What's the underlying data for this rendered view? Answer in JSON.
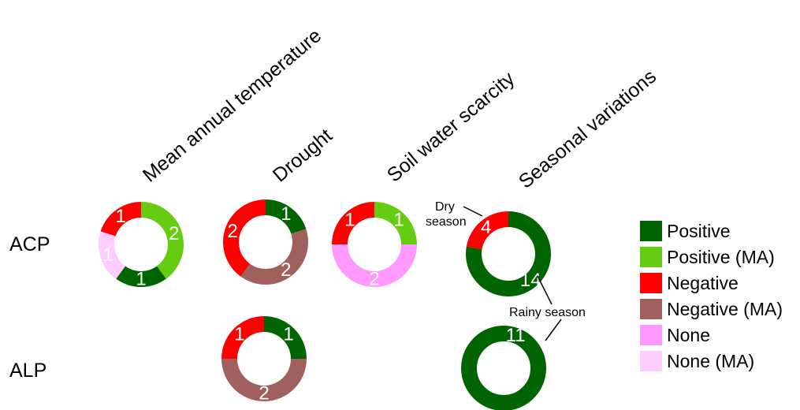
{
  "chart_data": {
    "type": "pie",
    "categories": [
      "Positive",
      "Positive (MA)",
      "Negative",
      "Negative (MA)",
      "None",
      "None (MA)"
    ],
    "colors": {
      "Positive": "#006400",
      "Positive (MA)": "#66cc11",
      "Negative": "#ff0000",
      "Negative (MA)": "#a0605e",
      "None": "#ff99ff",
      "None (MA)": "#ffccff"
    },
    "columns": [
      "Mean annual temperature",
      "Drought",
      "Soil water scarcity",
      "Seasonal variations"
    ],
    "rows": [
      "ACP",
      "ALP"
    ],
    "legend": [
      "Positive",
      "Positive (MA)",
      "Negative",
      "Negative (MA)",
      "None",
      "None (MA)"
    ],
    "legend_position": "right",
    "donuts": [
      {
        "row": "ACP",
        "column": "Mean annual temperature",
        "slices": [
          {
            "category": "Positive (MA)",
            "value": 2
          },
          {
            "category": "Positive",
            "value": 1
          },
          {
            "category": "None (MA)",
            "value": 1
          },
          {
            "category": "Negative",
            "value": 1
          }
        ]
      },
      {
        "row": "ACP",
        "column": "Drought",
        "slices": [
          {
            "category": "Positive",
            "value": 1
          },
          {
            "category": "Negative (MA)",
            "value": 2
          },
          {
            "category": "Negative",
            "value": 2
          }
        ]
      },
      {
        "row": "ACP",
        "column": "Soil water scarcity",
        "slices": [
          {
            "category": "Positive (MA)",
            "value": 1
          },
          {
            "category": "None",
            "value": 2
          },
          {
            "category": "Negative",
            "value": 1
          }
        ]
      },
      {
        "row": "ACP",
        "column": "Seasonal variations",
        "slices": [
          {
            "category": "Positive",
            "value": 14
          },
          {
            "category": "Negative",
            "value": 4
          }
        ]
      },
      {
        "row": "ALP",
        "column": "Drought",
        "slices": [
          {
            "category": "Positive",
            "value": 1
          },
          {
            "category": "Negative (MA)",
            "value": 2
          },
          {
            "category": "Negative",
            "value": 1
          }
        ]
      },
      {
        "row": "ALP",
        "column": "Seasonal variations",
        "slices": [
          {
            "category": "Positive",
            "value": 11
          }
        ]
      }
    ],
    "annotations": {
      "dry_season_line1": "Dry",
      "dry_season_line2": "season",
      "rainy_season": "Rainy season"
    }
  }
}
